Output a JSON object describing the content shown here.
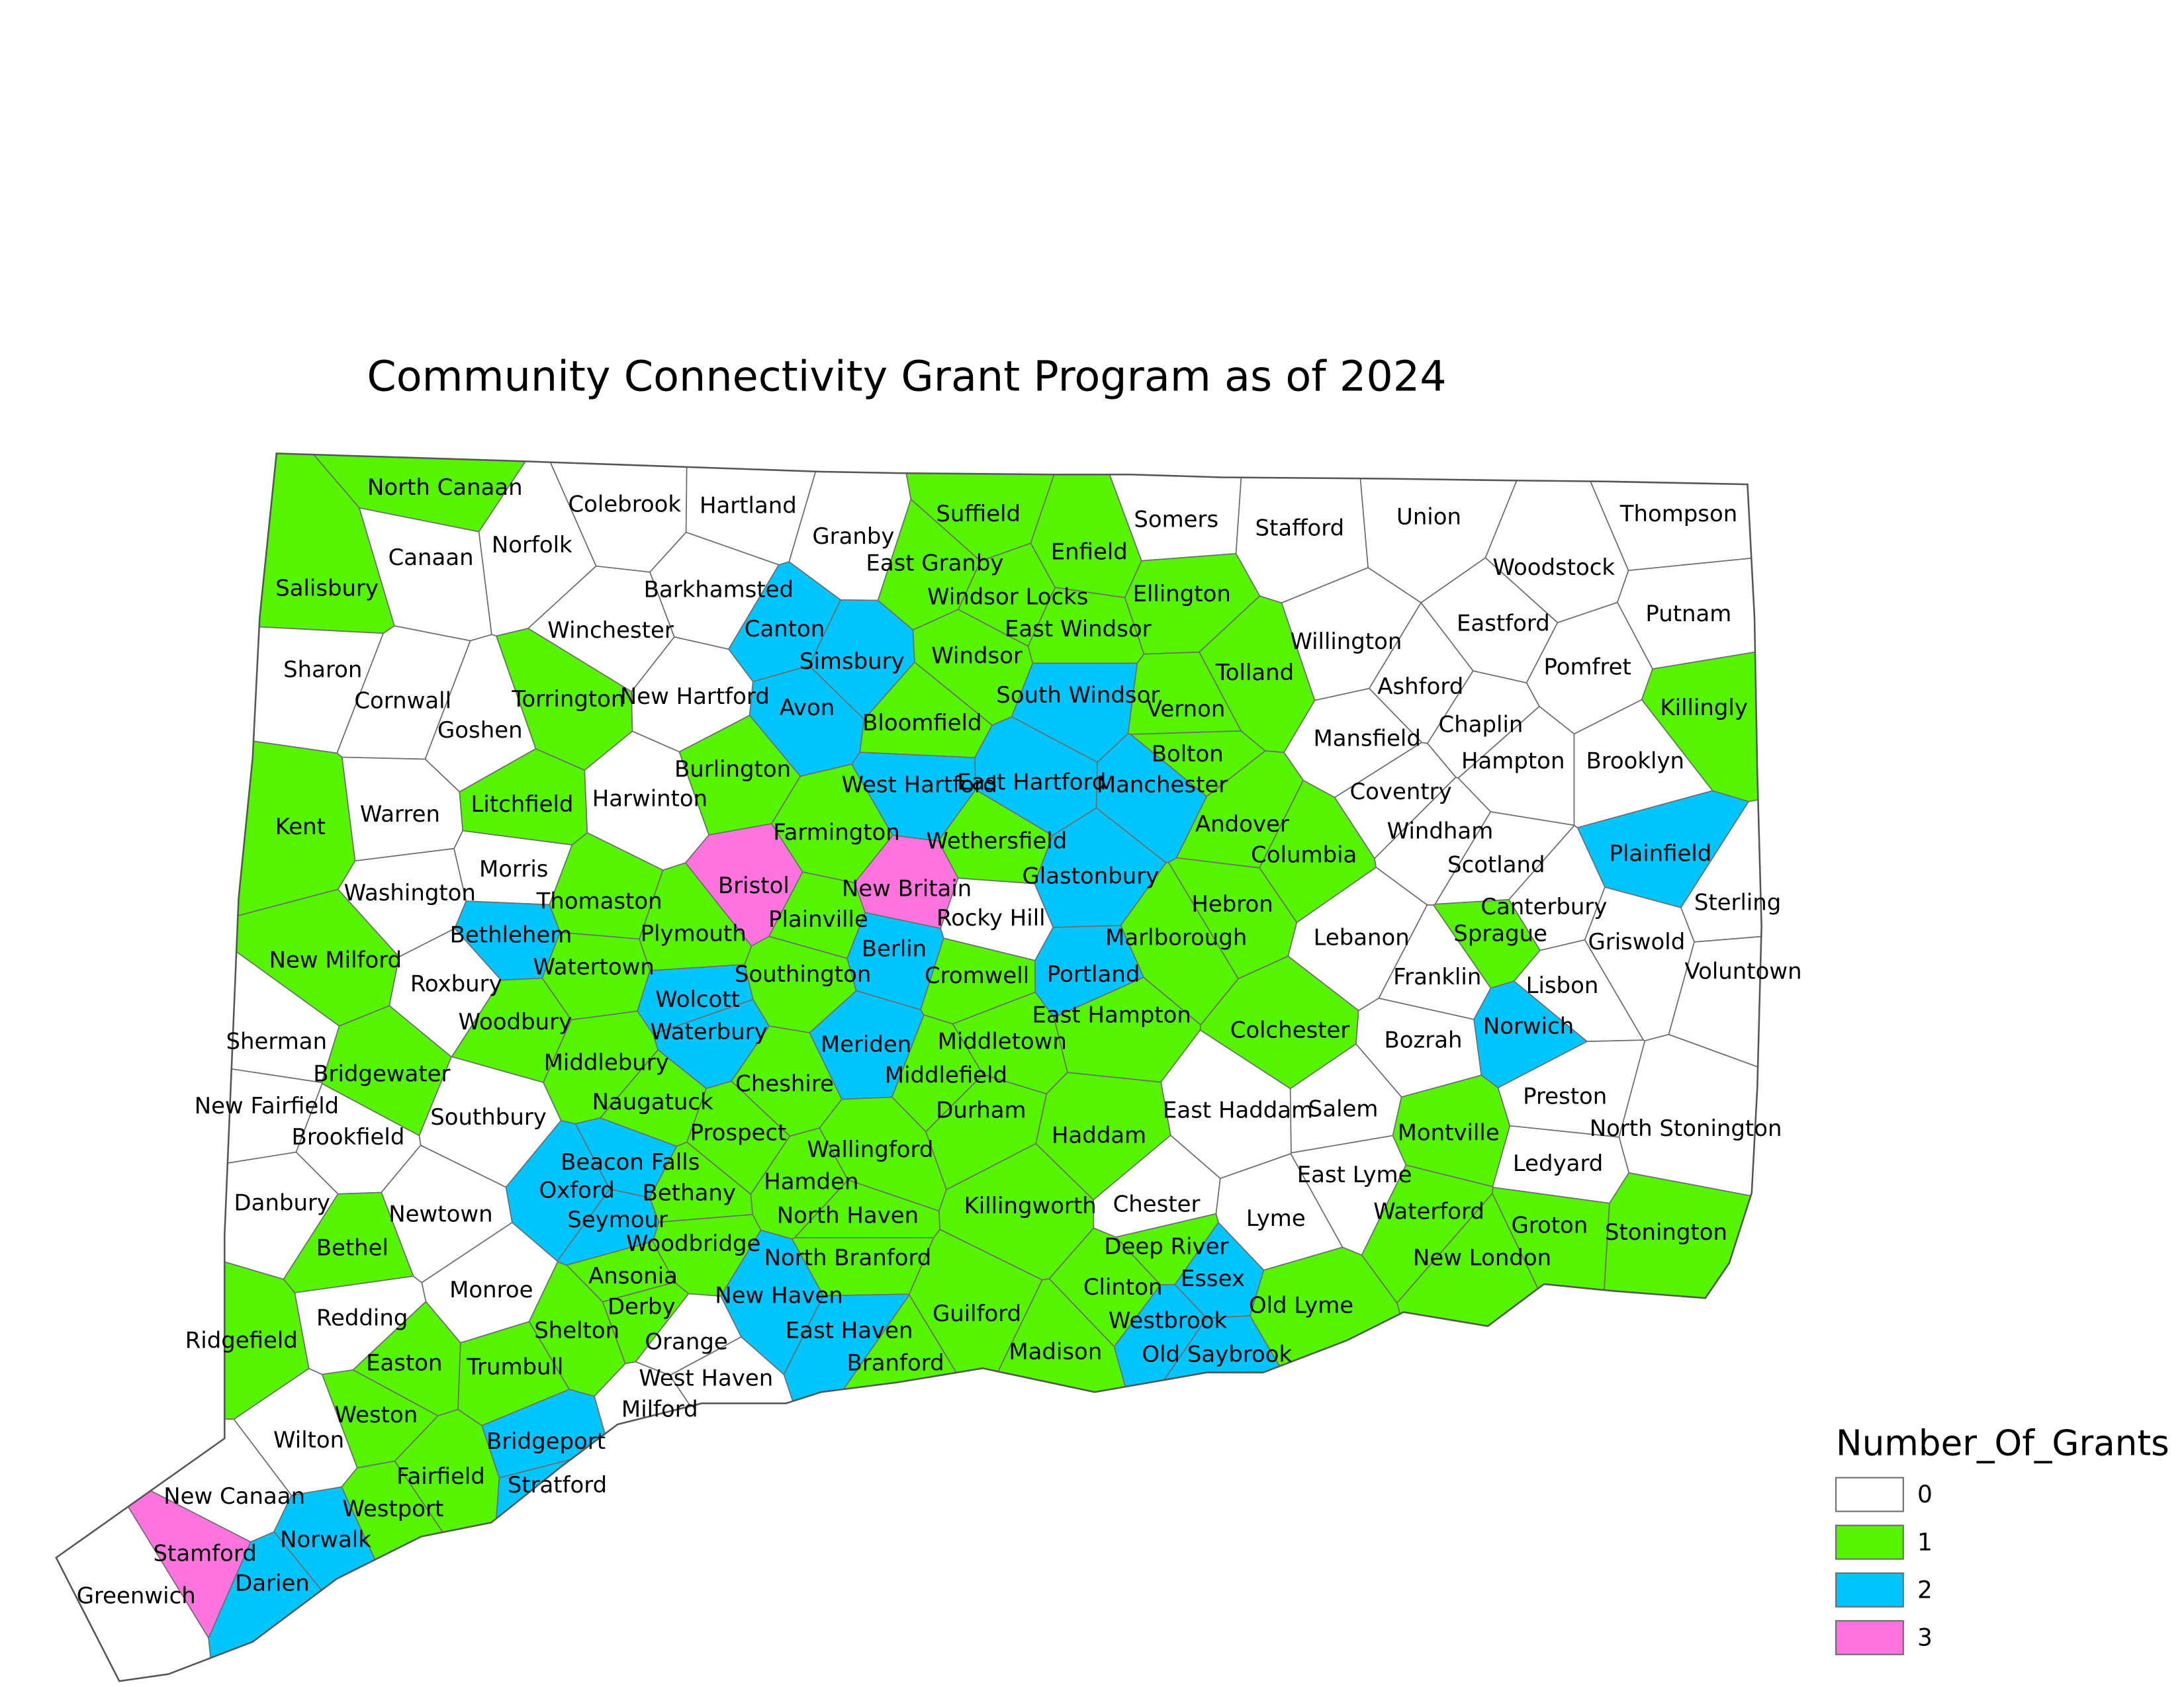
{
  "title": "Community Connectivity Grant Program as of 2024",
  "legend": {
    "title": "Number_Of_Grants",
    "values": [
      0,
      1,
      2,
      3
    ],
    "colors": [
      "#ffffff",
      "#55f500",
      "#00c5ff",
      "#ff73df"
    ]
  },
  "towns": [
    {
      "name": "North Canaan",
      "grants": 1
    },
    {
      "name": "Salisbury",
      "grants": 1
    },
    {
      "name": "Canaan",
      "grants": 0
    },
    {
      "name": "Norfolk",
      "grants": 0
    },
    {
      "name": "Colebrook",
      "grants": 0
    },
    {
      "name": "Hartland",
      "grants": 0
    },
    {
      "name": "Granby",
      "grants": 0
    },
    {
      "name": "Suffield",
      "grants": 1
    },
    {
      "name": "Enfield",
      "grants": 1
    },
    {
      "name": "Somers",
      "grants": 0
    },
    {
      "name": "Stafford",
      "grants": 0
    },
    {
      "name": "Union",
      "grants": 0
    },
    {
      "name": "Woodstock",
      "grants": 0
    },
    {
      "name": "Thompson",
      "grants": 0
    },
    {
      "name": "Barkhamsted",
      "grants": 0
    },
    {
      "name": "East Granby",
      "grants": 1
    },
    {
      "name": "Windsor Locks",
      "grants": 1
    },
    {
      "name": "Ellington",
      "grants": 1
    },
    {
      "name": "East Windsor",
      "grants": 1
    },
    {
      "name": "Winchester",
      "grants": 0
    },
    {
      "name": "Canton",
      "grants": 2
    },
    {
      "name": "Simsbury",
      "grants": 2
    },
    {
      "name": "Windsor",
      "grants": 1
    },
    {
      "name": "Tolland",
      "grants": 1
    },
    {
      "name": "Willington",
      "grants": 0
    },
    {
      "name": "Eastford",
      "grants": 0
    },
    {
      "name": "Putnam",
      "grants": 0
    },
    {
      "name": "Pomfret",
      "grants": 0
    },
    {
      "name": "Sharon",
      "grants": 0
    },
    {
      "name": "Cornwall",
      "grants": 0
    },
    {
      "name": "Torrington",
      "grants": 1
    },
    {
      "name": "Goshen",
      "grants": 0
    },
    {
      "name": "New Hartford",
      "grants": 0
    },
    {
      "name": "Avon",
      "grants": 2
    },
    {
      "name": "Bloomfield",
      "grants": 1
    },
    {
      "name": "South Windsor",
      "grants": 2
    },
    {
      "name": "Vernon",
      "grants": 1
    },
    {
      "name": "Ashford",
      "grants": 0
    },
    {
      "name": "Killingly",
      "grants": 1
    },
    {
      "name": "Mansfield",
      "grants": 0
    },
    {
      "name": "Chaplin",
      "grants": 0
    },
    {
      "name": "Hampton",
      "grants": 0
    },
    {
      "name": "Brooklyn",
      "grants": 0
    },
    {
      "name": "Kent",
      "grants": 1
    },
    {
      "name": "Warren",
      "grants": 0
    },
    {
      "name": "Litchfield",
      "grants": 1
    },
    {
      "name": "Harwinton",
      "grants": 0
    },
    {
      "name": "Burlington",
      "grants": 1
    },
    {
      "name": "West Hartford",
      "grants": 2
    },
    {
      "name": "East Hartford",
      "grants": 2
    },
    {
      "name": "Bolton",
      "grants": 1
    },
    {
      "name": "Manchester",
      "grants": 2
    },
    {
      "name": "Coventry",
      "grants": 0
    },
    {
      "name": "Andover",
      "grants": 1
    },
    {
      "name": "Farmington",
      "grants": 1
    },
    {
      "name": "Wethersfield",
      "grants": 1
    },
    {
      "name": "Columbia",
      "grants": 1
    },
    {
      "name": "Windham",
      "grants": 0
    },
    {
      "name": "Scotland",
      "grants": 0
    },
    {
      "name": "Plainfield",
      "grants": 2
    },
    {
      "name": "Washington",
      "grants": 0
    },
    {
      "name": "Morris",
      "grants": 0
    },
    {
      "name": "Thomaston",
      "grants": 1
    },
    {
      "name": "Bristol",
      "grants": 3
    },
    {
      "name": "New Britain",
      "grants": 3
    },
    {
      "name": "Glastonbury",
      "grants": 2
    },
    {
      "name": "Hebron",
      "grants": 1
    },
    {
      "name": "Canterbury",
      "grants": 0
    },
    {
      "name": "Sterling",
      "grants": 0
    },
    {
      "name": "New Milford",
      "grants": 1
    },
    {
      "name": "Bethlehem",
      "grants": 2
    },
    {
      "name": "Plymouth",
      "grants": 1
    },
    {
      "name": "Plainville",
      "grants": 1
    },
    {
      "name": "Rocky Hill",
      "grants": 0
    },
    {
      "name": "Marlborough",
      "grants": 1
    },
    {
      "name": "Lebanon",
      "grants": 0
    },
    {
      "name": "Sprague",
      "grants": 1
    },
    {
      "name": "Griswold",
      "grants": 0
    },
    {
      "name": "Roxbury",
      "grants": 0
    },
    {
      "name": "Watertown",
      "grants": 1
    },
    {
      "name": "Southington",
      "grants": 1
    },
    {
      "name": "Berlin",
      "grants": 2
    },
    {
      "name": "Cromwell",
      "grants": 1
    },
    {
      "name": "Portland",
      "grants": 2
    },
    {
      "name": "Franklin",
      "grants": 0
    },
    {
      "name": "Lisbon",
      "grants": 0
    },
    {
      "name": "Voluntown",
      "grants": 0
    },
    {
      "name": "Woodbury",
      "grants": 1
    },
    {
      "name": "Wolcott",
      "grants": 2
    },
    {
      "name": "East Hampton",
      "grants": 1
    },
    {
      "name": "Colchester",
      "grants": 1
    },
    {
      "name": "Norwich",
      "grants": 2
    },
    {
      "name": "Sherman",
      "grants": 0
    },
    {
      "name": "Middlebury",
      "grants": 1
    },
    {
      "name": "Waterbury",
      "grants": 2
    },
    {
      "name": "Meriden",
      "grants": 2
    },
    {
      "name": "Middletown",
      "grants": 1
    },
    {
      "name": "Bozrah",
      "grants": 0
    },
    {
      "name": "Bridgewater",
      "grants": 1
    },
    {
      "name": "Cheshire",
      "grants": 1
    },
    {
      "name": "Middlefield",
      "grants": 1
    },
    {
      "name": "New Fairfield",
      "grants": 0
    },
    {
      "name": "Naugatuck",
      "grants": 1
    },
    {
      "name": "Southbury",
      "grants": 0
    },
    {
      "name": "Durham",
      "grants": 1
    },
    {
      "name": "East Haddam",
      "grants": 0
    },
    {
      "name": "Salem",
      "grants": 0
    },
    {
      "name": "Montville",
      "grants": 1
    },
    {
      "name": "Preston",
      "grants": 0
    },
    {
      "name": "North Stonington",
      "grants": 0
    },
    {
      "name": "Brookfield",
      "grants": 0
    },
    {
      "name": "Prospect",
      "grants": 1
    },
    {
      "name": "Wallingford",
      "grants": 1
    },
    {
      "name": "Haddam",
      "grants": 1
    },
    {
      "name": "Beacon Falls",
      "grants": 2
    },
    {
      "name": "Ledyard",
      "grants": 0
    },
    {
      "name": "East Lyme",
      "grants": 0
    },
    {
      "name": "Danbury",
      "grants": 0
    },
    {
      "name": "Newtown",
      "grants": 0
    },
    {
      "name": "Oxford",
      "grants": 2
    },
    {
      "name": "Bethany",
      "grants": 1
    },
    {
      "name": "Hamden",
      "grants": 1
    },
    {
      "name": "North Haven",
      "grants": 1
    },
    {
      "name": "Killingworth",
      "grants": 1
    },
    {
      "name": "Chester",
      "grants": 0
    },
    {
      "name": "Lyme",
      "grants": 0
    },
    {
      "name": "Waterford",
      "grants": 1
    },
    {
      "name": "Seymour",
      "grants": 2
    },
    {
      "name": "Bethel",
      "grants": 1
    },
    {
      "name": "Woodbridge",
      "grants": 1
    },
    {
      "name": "North Branford",
      "grants": 1
    },
    {
      "name": "Deep River",
      "grants": 1
    },
    {
      "name": "Groton",
      "grants": 1
    },
    {
      "name": "Stonington",
      "grants": 1
    },
    {
      "name": "New London",
      "grants": 1
    },
    {
      "name": "Monroe",
      "grants": 0
    },
    {
      "name": "Ansonia",
      "grants": 1
    },
    {
      "name": "Essex",
      "grants": 2
    },
    {
      "name": "Clinton",
      "grants": 1
    },
    {
      "name": "New Haven",
      "grants": 2
    },
    {
      "name": "Derby",
      "grants": 1
    },
    {
      "name": "Ridgefield",
      "grants": 1
    },
    {
      "name": "Redding",
      "grants": 0
    },
    {
      "name": "Shelton",
      "grants": 1
    },
    {
      "name": "Guilford",
      "grants": 1
    },
    {
      "name": "East Haven",
      "grants": 2
    },
    {
      "name": "Westbrook",
      "grants": 2
    },
    {
      "name": "Old Lyme",
      "grants": 1
    },
    {
      "name": "Orange",
      "grants": 0
    },
    {
      "name": "Easton",
      "grants": 1
    },
    {
      "name": "Trumbull",
      "grants": 1
    },
    {
      "name": "Branford",
      "grants": 1
    },
    {
      "name": "Madison",
      "grants": 1
    },
    {
      "name": "Old Saybrook",
      "grants": 2
    },
    {
      "name": "West Haven",
      "grants": 0
    },
    {
      "name": "Milford",
      "grants": 0
    },
    {
      "name": "Weston",
      "grants": 1
    },
    {
      "name": "Wilton",
      "grants": 0
    },
    {
      "name": "Bridgeport",
      "grants": 2
    },
    {
      "name": "Fairfield",
      "grants": 1
    },
    {
      "name": "Stratford",
      "grants": 2
    },
    {
      "name": "New Canaan",
      "grants": 0
    },
    {
      "name": "Westport",
      "grants": 1
    },
    {
      "name": "Stamford",
      "grants": 3
    },
    {
      "name": "Norwalk",
      "grants": 2
    },
    {
      "name": "Darien",
      "grants": 2
    },
    {
      "name": "Greenwich",
      "grants": 0
    }
  ]
}
